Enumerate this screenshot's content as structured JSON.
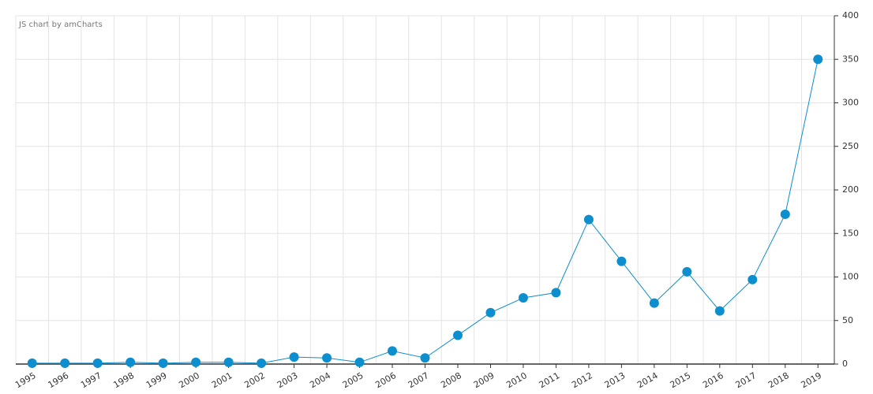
{
  "chart_data": {
    "type": "line",
    "credit": "JS chart by amCharts",
    "categories": [
      "1995",
      "1996",
      "1997",
      "1998",
      "1999",
      "2000",
      "2001",
      "2002",
      "2003",
      "2004",
      "2005",
      "2006",
      "2007",
      "2008",
      "2009",
      "2010",
      "2011",
      "2012",
      "2013",
      "2014",
      "2015",
      "2016",
      "2017",
      "2018",
      "2019"
    ],
    "series": [
      {
        "color": "#0d8ecf",
        "values": [
          1,
          1,
          1,
          2,
          1,
          2,
          2,
          1,
          8,
          7,
          2,
          15,
          7,
          33,
          59,
          76,
          82,
          166,
          118,
          70,
          106,
          61,
          97,
          172,
          350
        ]
      }
    ],
    "ylim": [
      0,
      400
    ],
    "yticks": [
      0,
      50,
      100,
      150,
      200,
      250,
      300,
      350,
      400
    ],
    "grid": true
  }
}
